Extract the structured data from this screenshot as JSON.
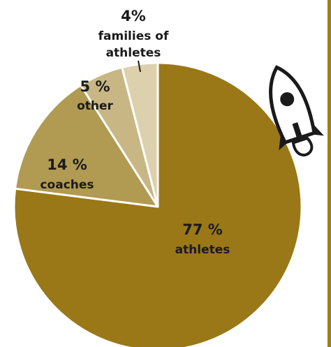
{
  "chart_data": {
    "type": "pie",
    "start_angle_deg": 0,
    "direction": "clockwise",
    "slices": [
      {
        "percent_label": "77 %",
        "label": "athletes",
        "value": 77,
        "color": "#9a7818"
      },
      {
        "percent_label": "14 %",
        "label": "coaches",
        "value": 14,
        "color": "#b19a52"
      },
      {
        "percent_label": "5 %",
        "label": "other",
        "value": 5,
        "color": "#c8b685"
      },
      {
        "percent_label": "4%",
        "label": "families of athletes",
        "label_lines": [
          "families of",
          "athletes"
        ],
        "value": 4,
        "color": "#ddd0ad"
      }
    ],
    "slice_border_color": "#ffffff"
  },
  "decoration": {
    "icon": "rocket-icon",
    "accent_color": "#a07d1a"
  }
}
